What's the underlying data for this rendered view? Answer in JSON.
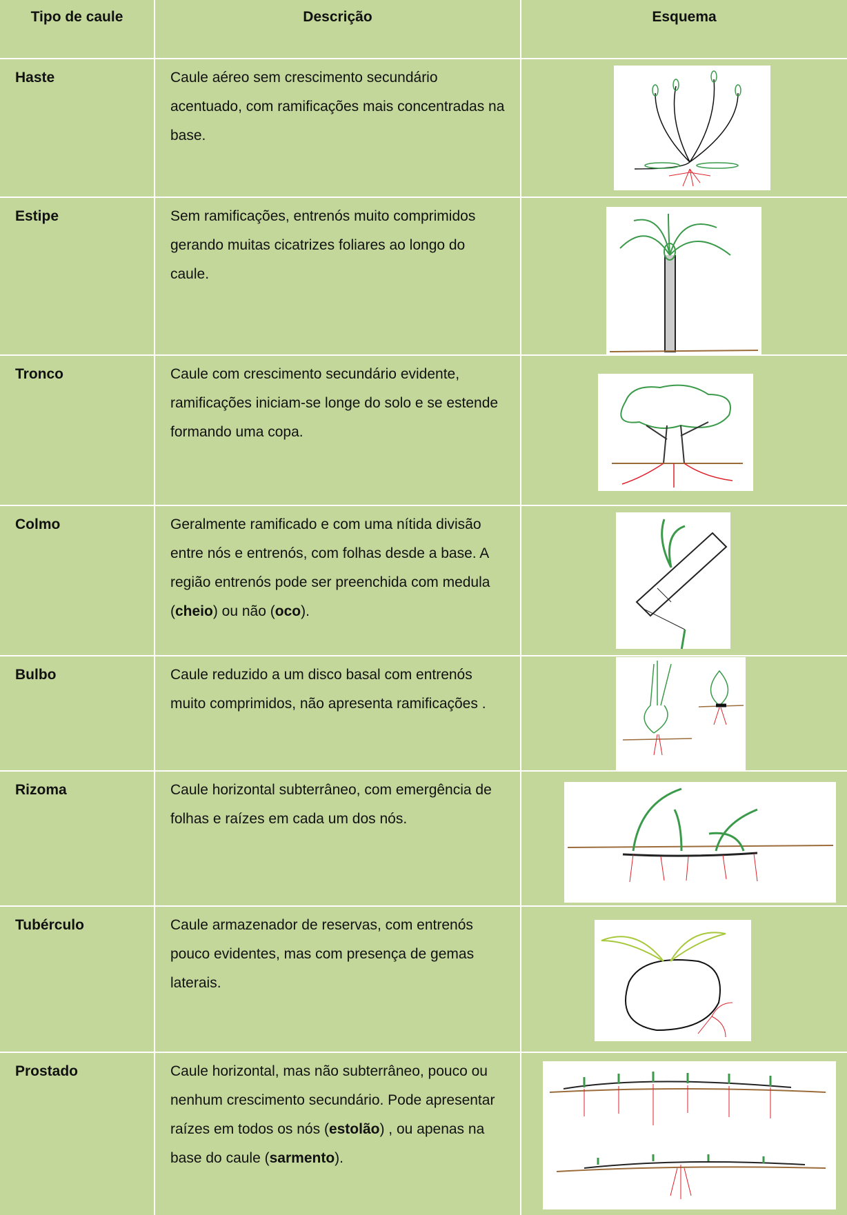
{
  "table": {
    "header": [
      "Tipo de caule",
      "Descrição",
      "Esquema"
    ],
    "rows": [
      {
        "name": "Haste",
        "description": [
          "Caule aéreo sem crescimento secundário acentuado, com ramificações mais concentradas na base."
        ]
      },
      {
        "name": "Estipe",
        "description": [
          "Sem ramificações,  entrenós muito comprimidos gerando muitas cicatrizes foliares ao longo do caule."
        ]
      },
      {
        "name": "Tronco",
        "description": [
          " Caule com crescimento secundário evidente, ramificações iniciam-se longe do solo e se estende formando uma copa."
        ]
      },
      {
        "name": "Colmo",
        "description": [
          "Geralmente ramificado e com uma nítida divisão entre nós e entrenós, com folhas desde a base.  A região entrenós pode ser preenchida com medula (",
          "cheio",
          ") ou não (",
          "oco",
          ")."
        ]
      },
      {
        "name": "Bulbo",
        "description": [
          "Caule reduzido a um disco basal com entrenós muito comprimidos, não apresenta ramificações ."
        ]
      },
      {
        "name": "Rizoma",
        "description": [
          "Caule horizontal subterrâneo, com emergência de folhas e raízes em cada um dos nós."
        ]
      },
      {
        "name": "Tubérculo",
        "description": [
          "Caule armazenador de reservas, com entrenós pouco evidentes, mas com presença de gemas laterais."
        ]
      },
      {
        "name": "Prostado",
        "description": [
          " Caule  horizontal, mas não subterrâneo, pouco ou nenhum crescimento secundário. Pode apresentar raízes em todos os nós (",
          "estolão",
          ") , ou apenas na base do caule (",
          "sarmento",
          ")."
        ]
      }
    ]
  }
}
